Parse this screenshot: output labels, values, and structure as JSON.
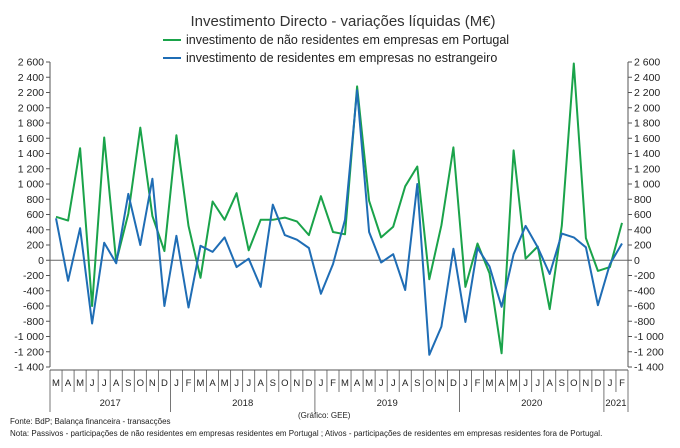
{
  "chart_data": {
    "type": "line",
    "title": "Investimento Directo - variações líquidas (M€)",
    "y_ticks": [
      "2 600",
      "2 400",
      "2 200",
      "2 000",
      "1 800",
      "1 600",
      "1 400",
      "1 200",
      "1 000",
      "800",
      "600",
      "400",
      "200",
      "0",
      "-200",
      "-400",
      "-600",
      "-800",
      "-1 000",
      "-1 200",
      "-1 400"
    ],
    "ylim": [
      -1400,
      2600
    ],
    "months": [
      "M",
      "A",
      "M",
      "J",
      "J",
      "A",
      "S",
      "O",
      "N",
      "D",
      "J",
      "F",
      "M",
      "A",
      "M",
      "J",
      "J",
      "A",
      "S",
      "O",
      "N",
      "D",
      "J",
      "F",
      "M",
      "A",
      "M",
      "J",
      "J",
      "A",
      "S",
      "O",
      "N",
      "D",
      "J",
      "F",
      "M",
      "A",
      "M",
      "J",
      "J",
      "A",
      "S",
      "O",
      "N",
      "D",
      "J",
      "F"
    ],
    "years": [
      "2017",
      "2018",
      "2019",
      "2020",
      "2021"
    ],
    "series": [
      {
        "name": "investimento de não residentes em empresas em Portugal",
        "color": "#1aa34a",
        "values": [
          570,
          520,
          1470,
          -600,
          1610,
          -20,
          610,
          1740,
          580,
          120,
          1640,
          450,
          -230,
          770,
          530,
          880,
          130,
          530,
          530,
          560,
          510,
          330,
          840,
          370,
          340,
          2280,
          780,
          300,
          440,
          970,
          1230,
          -250,
          460,
          1480,
          -350,
          220,
          -170,
          -1220,
          1440,
          20,
          180,
          -640,
          450,
          2580,
          290,
          -140,
          -90,
          490
        ]
      },
      {
        "name": "investimento de residentes em empresas no estrangeiro",
        "color": "#1f6db5",
        "values": [
          550,
          -270,
          420,
          -830,
          230,
          -40,
          870,
          200,
          1070,
          -600,
          320,
          -620,
          190,
          110,
          300,
          -90,
          20,
          -350,
          730,
          330,
          270,
          160,
          -440,
          -50,
          530,
          2230,
          370,
          -30,
          80,
          -390,
          1000,
          -1240,
          -870,
          150,
          -810,
          160,
          -80,
          -610,
          80,
          450,
          170,
          -180,
          350,
          300,
          170,
          -590,
          -50,
          220
        ]
      }
    ],
    "xlabel": "",
    "ylabel": ""
  },
  "footer": {
    "source": "Fonte: BdP; Balança financeira - transacções",
    "credit": "(Gráfico: GEE)",
    "note": "Nota: Passivos - participações de não residentes em empresas residentes em Portugal ; Ativos - participações de residentes em empresas residentes fora de Portugal."
  }
}
